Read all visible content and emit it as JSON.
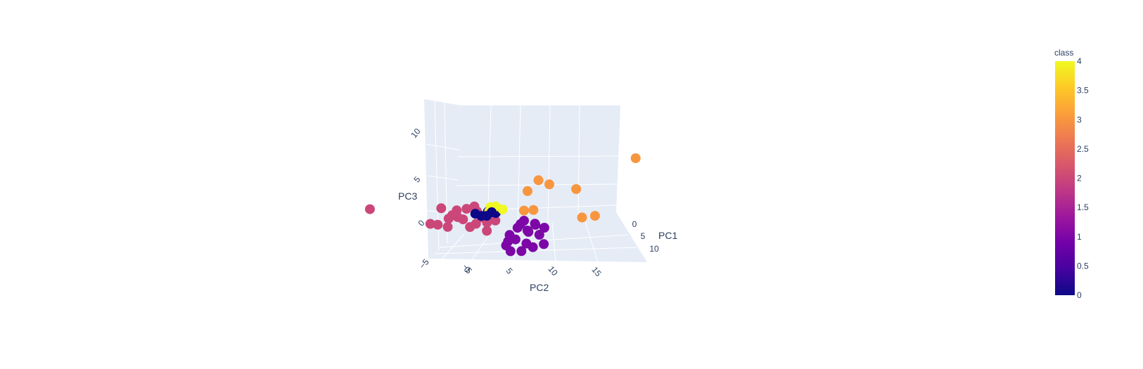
{
  "chart_data": {
    "type": "scatter",
    "mode": "3d",
    "axes": {
      "x": {
        "label": "PC1",
        "ticks": [
          "0",
          "5",
          "10"
        ]
      },
      "y": {
        "label": "PC2",
        "ticks": [
          "−5",
          "0",
          "5",
          "10",
          "15"
        ]
      },
      "z": {
        "label": "PC3",
        "ticks": [
          "−5",
          "0",
          "5",
          "10"
        ]
      }
    },
    "colorbar": {
      "title": "class",
      "range": [
        0,
        4
      ],
      "ticks": [
        "0",
        "0.5",
        "1",
        "1.5",
        "2",
        "2.5",
        "3",
        "3.5",
        "4"
      ],
      "colors": [
        "#0d0887",
        "#46039f",
        "#7201a8",
        "#9c179e",
        "#bd3786",
        "#d8576b",
        "#ed7953",
        "#fb9f3a",
        "#fdca26",
        "#f0f921"
      ]
    },
    "series": [
      {
        "class": 0,
        "points": [
          [
            1,
            2,
            4.5
          ],
          [
            1.5,
            1,
            4.2
          ],
          [
            0.5,
            2.5,
            4.6
          ],
          [
            2,
            1.5,
            4.3
          ],
          [
            1,
            3,
            4.1
          ],
          [
            0.8,
            0.5,
            4.4
          ],
          [
            1.8,
            2.2,
            4.7
          ]
        ]
      },
      {
        "class": 1,
        "points": [
          [
            3,
            5,
            2
          ],
          [
            4,
            6,
            1.5
          ],
          [
            5,
            4,
            1
          ],
          [
            3.5,
            7,
            2.5
          ],
          [
            6,
            5,
            0.5
          ],
          [
            4.5,
            3,
            0
          ],
          [
            5.5,
            6,
            -0.5
          ],
          [
            3,
            4,
            1
          ],
          [
            4,
            8,
            1.8
          ],
          [
            6.5,
            7,
            0.2
          ],
          [
            5,
            5.5,
            2.2
          ],
          [
            2.5,
            6,
            2.8
          ],
          [
            7,
            4,
            -0.2
          ],
          [
            4,
            5,
            3
          ],
          [
            5,
            7,
            1.2
          ],
          [
            3.8,
            3.5,
            0.3
          ],
          [
            6,
            3,
            -0.4
          ],
          [
            4.2,
            6.8,
            2.6
          ]
        ]
      },
      {
        "class": 2,
        "points": [
          [
            -3,
            -1,
            3
          ],
          [
            -2,
            0,
            2.5
          ],
          [
            -4,
            -2,
            4
          ],
          [
            -3.5,
            1,
            3.5
          ],
          [
            -2.5,
            -3,
            2
          ],
          [
            -1,
            0.5,
            1.5
          ],
          [
            -3,
            2,
            1
          ],
          [
            -4.5,
            -1,
            0.5
          ],
          [
            -2,
            3,
            0
          ],
          [
            -1.5,
            -2,
            3.2
          ],
          [
            -3.8,
            0,
            2.2
          ],
          [
            -2.2,
            1.5,
            4.3
          ],
          [
            -5,
            -3,
            1.2
          ],
          [
            -1,
            2,
            2.8
          ],
          [
            -2.8,
            -0.5,
            3.8
          ],
          [
            -3.3,
            3.5,
            0.8
          ],
          [
            -1.8,
            4,
            1.6
          ],
          [
            -4,
            2.5,
            2.6
          ],
          [
            -12,
            -8,
            2
          ]
        ]
      },
      {
        "class": 3,
        "points": [
          [
            2,
            8,
            9
          ],
          [
            3,
            9,
            8.5
          ],
          [
            1,
            7,
            7
          ],
          [
            4,
            12,
            7.5
          ],
          [
            5,
            14,
            3
          ],
          [
            2.5,
            6,
            4.5
          ],
          [
            3,
            7,
            4.6
          ],
          [
            6,
            12,
            3.5
          ],
          [
            8,
            18,
            13
          ]
        ]
      },
      {
        "class": 4,
        "points": [
          [
            0.5,
            2.5,
            5
          ],
          [
            1,
            3,
            5.2
          ],
          [
            1.5,
            2,
            4.8
          ],
          [
            2,
            3.5,
            5
          ]
        ]
      }
    ]
  }
}
